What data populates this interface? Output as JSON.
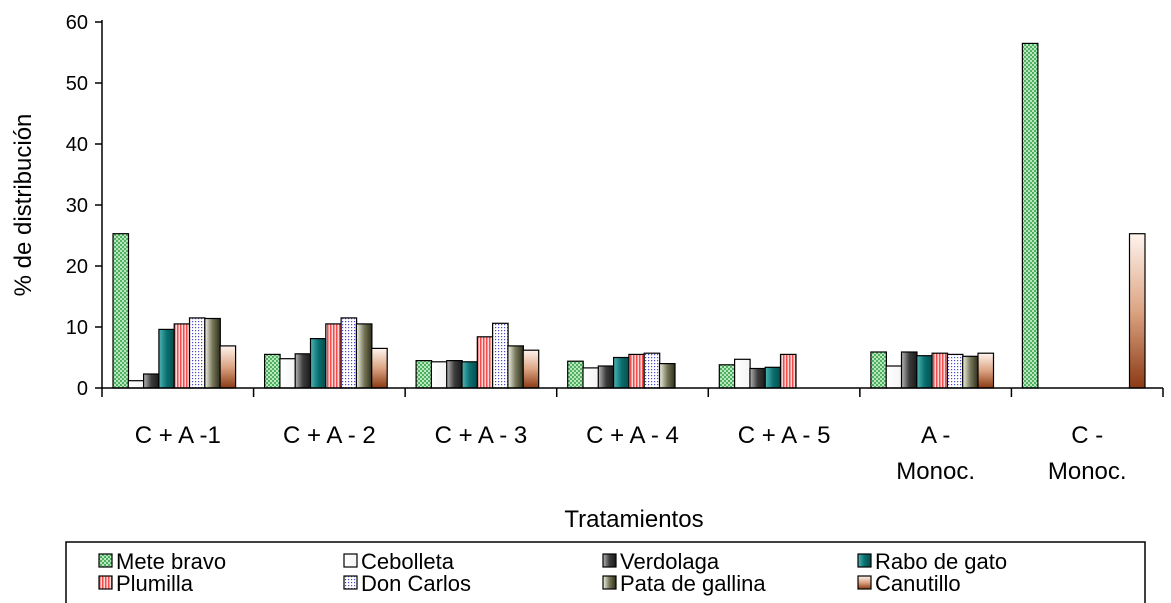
{
  "chart_data": {
    "type": "bar",
    "xlabel": "Tratamientos",
    "ylabel": "% de distribución",
    "ylim": [
      0,
      60
    ],
    "yticks": [
      0,
      10,
      20,
      30,
      40,
      50,
      60
    ],
    "grid": false,
    "legend_position": "bottom",
    "categories": [
      [
        "C + A -1"
      ],
      [
        "C + A - 2"
      ],
      [
        "C + A - 3"
      ],
      [
        "C + A - 4"
      ],
      [
        "C + A - 5"
      ],
      [
        "A -",
        "Monoc."
      ],
      [
        "C -",
        "Monoc."
      ]
    ],
    "series": [
      {
        "name": "Mete bravo",
        "color": "#9fd9a8",
        "values": [
          25.3,
          5.5,
          4.5,
          4.4,
          3.8,
          5.9,
          56.5
        ]
      },
      {
        "name": "Cebolleta",
        "color": "#ffffff",
        "values": [
          1.2,
          4.8,
          4.3,
          3.3,
          4.7,
          3.6,
          null
        ]
      },
      {
        "name": "Verdolaga",
        "color": "#707070",
        "values": [
          2.3,
          5.6,
          4.5,
          3.6,
          3.2,
          5.9,
          null
        ]
      },
      {
        "name": "Rabo de gato",
        "color": "#0f7f7f",
        "values": [
          9.6,
          8.1,
          4.3,
          5.0,
          3.4,
          5.3,
          null
        ]
      },
      {
        "name": "Plumilla",
        "color": "#f6a6a6",
        "values": [
          10.5,
          10.5,
          8.4,
          5.5,
          5.5,
          5.7,
          null
        ]
      },
      {
        "name": "Don Carlos",
        "color": "#dcdcf5",
        "values": [
          11.5,
          11.5,
          10.6,
          5.7,
          null,
          5.5,
          null
        ]
      },
      {
        "name": "Pata de gallina",
        "color": "#55553a",
        "values": [
          11.4,
          10.5,
          6.9,
          4.0,
          null,
          5.2,
          null
        ]
      },
      {
        "name": "Canutillo",
        "color": "#c97848",
        "values": [
          6.9,
          6.5,
          6.2,
          null,
          null,
          5.7,
          25.3
        ]
      }
    ]
  }
}
